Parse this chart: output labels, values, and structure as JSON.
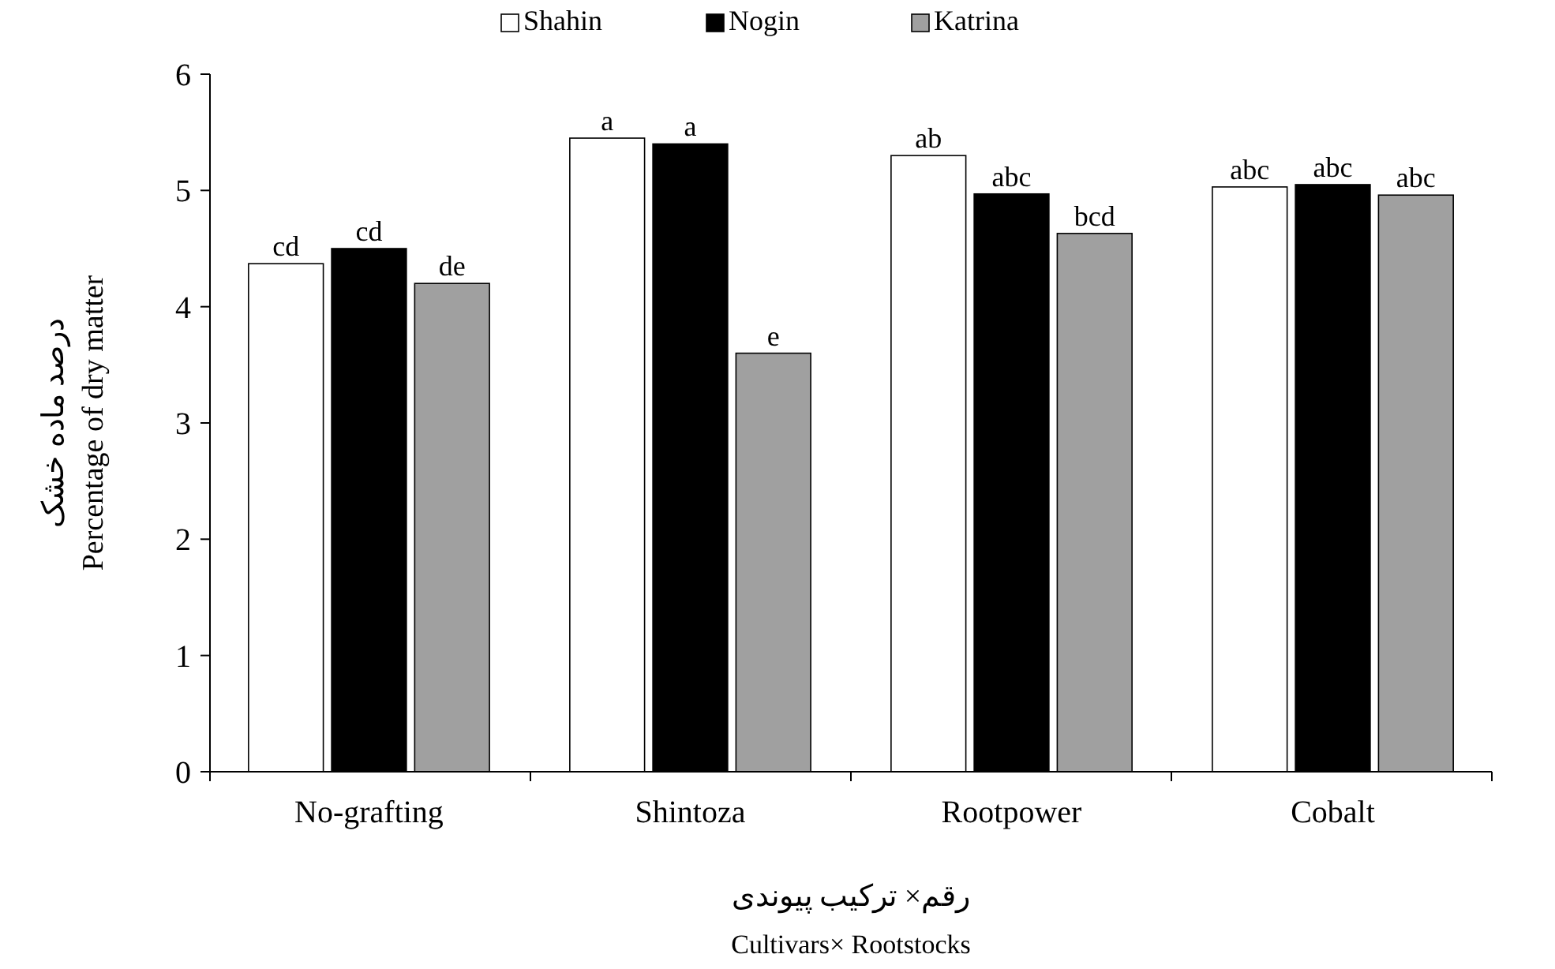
{
  "chart_data": {
    "type": "bar",
    "ylabel": "درصد ماده خشک\nPercentage of dry matter",
    "xlabel": "رقم× ترکیب پیوندی\nCultivars× Rootstocks",
    "categories": [
      "No-grafting",
      "Shintoza",
      "Rootpower",
      "Cobalt"
    ],
    "series": [
      {
        "name": "Shahin",
        "color": "#ffffff",
        "values": [
          4.37,
          5.45,
          5.3,
          5.03
        ],
        "value_labels": [
          "cd",
          "a",
          "ab",
          "abc"
        ]
      },
      {
        "name": "Nogin",
        "color": "#000000",
        "values": [
          4.5,
          5.4,
          4.97,
          5.05
        ],
        "value_labels": [
          "cd",
          "a",
          "abc",
          "abc"
        ]
      },
      {
        "name": "Katrina",
        "color": "#a0a0a0",
        "values": [
          4.2,
          3.6,
          4.63,
          4.96
        ],
        "value_labels": [
          "de",
          "e",
          "bcd",
          "abc"
        ]
      }
    ],
    "ylim": [
      0,
      6
    ],
    "yticks": [
      0,
      1,
      2,
      3,
      4,
      5,
      6
    ],
    "grid": false,
    "legend": "top"
  }
}
